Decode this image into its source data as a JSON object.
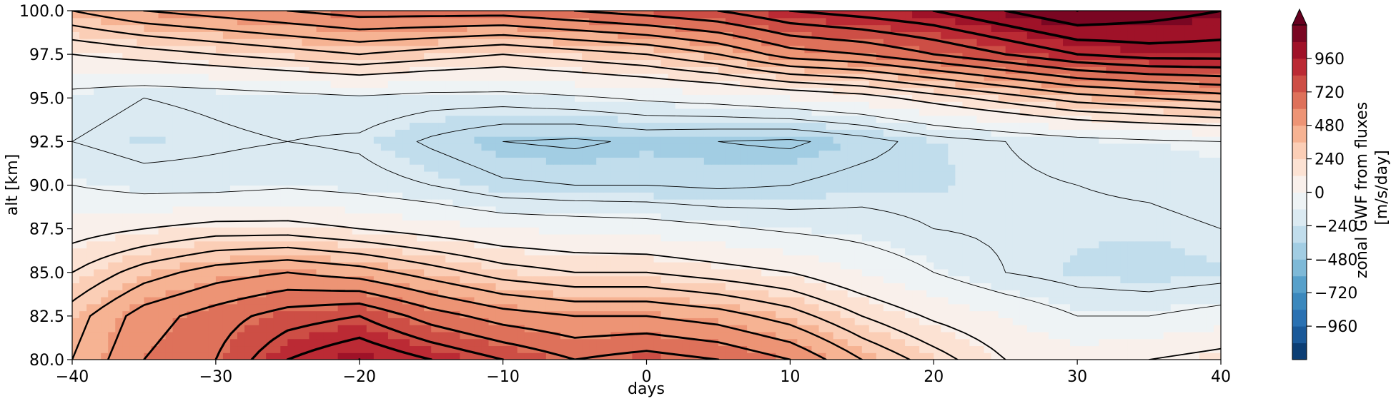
{
  "chart_data": {
    "type": "heatmap",
    "title": "",
    "xlabel": "days",
    "ylabel": "alt [km]",
    "xlim": [
      -40,
      40
    ],
    "ylim": [
      80,
      100
    ],
    "xticks": [
      -40,
      -30,
      -20,
      -10,
      0,
      10,
      20,
      30,
      40
    ],
    "xtick_labels": [
      "−40",
      "−30",
      "−20",
      "−10",
      "0",
      "10",
      "20",
      "30",
      "40"
    ],
    "yticks": [
      80,
      82.5,
      85,
      87.5,
      90,
      92.5,
      95,
      97.5,
      100
    ],
    "ytick_labels": [
      "80.0",
      "82.5",
      "85.0",
      "87.5",
      "90.0",
      "92.5",
      "95.0",
      "97.5",
      "100.0"
    ],
    "grid": false,
    "colormap": "RdBu_r",
    "colorbar": {
      "label_line1": "zonal GWF from fluxes",
      "label_line2": "[m/s/day]",
      "range": [
        -1200,
        1200
      ],
      "ticks": [
        -960,
        -720,
        -480,
        -240,
        0,
        240,
        480,
        720,
        960
      ],
      "tick_labels": [
        "−960",
        "−720",
        "−480",
        "−240",
        "0",
        "240",
        "480",
        "720",
        "960"
      ],
      "extend": "max",
      "colors": [
        "#053061",
        "#2166ac",
        "#4393c3",
        "#92c5de",
        "#d1e5f0",
        "#f7f7f7",
        "#fddbc7",
        "#f4a582",
        "#d6604d",
        "#b2182b",
        "#67001f"
      ]
    },
    "contour_color": "#000000",
    "series": [
      {
        "x": [
          -40,
          -35,
          -30,
          -25,
          -20,
          -15,
          -10,
          -5,
          0,
          5,
          10,
          15,
          20,
          25,
          30,
          35,
          40
        ],
        "altitudes": [
          80,
          82.5,
          85,
          87.5,
          90,
          92.5,
          95,
          97.5,
          100
        ],
        "values": [
          [
            400,
            600,
            700,
            900,
            1000,
            900,
            800,
            700,
            750,
            700,
            600,
            400,
            250,
            100,
            50,
            100,
            150
          ],
          [
            350,
            550,
            650,
            750,
            800,
            650,
            550,
            500,
            500,
            450,
            350,
            200,
            80,
            0,
            -100,
            -100,
            -50
          ],
          [
            200,
            350,
            450,
            500,
            450,
            350,
            250,
            200,
            200,
            150,
            100,
            0,
            -100,
            -200,
            -250,
            -280,
            -250
          ],
          [
            50,
            100,
            150,
            150,
            100,
            50,
            0,
            -20,
            -40,
            -80,
            -120,
            -150,
            -200,
            -220,
            -230,
            -230,
            -200
          ],
          [
            -100,
            -150,
            -150,
            -120,
            -150,
            -200,
            -280,
            -300,
            -300,
            -320,
            -300,
            -250,
            -250,
            -220,
            -200,
            -180,
            -150
          ],
          [
            -200,
            -250,
            -220,
            -200,
            -220,
            -320,
            -400,
            -420,
            -380,
            -400,
            -420,
            -350,
            -250,
            -200,
            -150,
            -120,
            -100
          ],
          [
            -150,
            -200,
            -180,
            -150,
            -120,
            -150,
            -150,
            -120,
            -80,
            -50,
            0,
            50,
            150,
            250,
            350,
            400,
            450
          ],
          [
            100,
            150,
            200,
            250,
            300,
            250,
            200,
            250,
            300,
            400,
            550,
            600,
            700,
            800,
            900,
            950,
            950
          ],
          [
            400,
            500,
            550,
            600,
            650,
            650,
            650,
            700,
            750,
            800,
            900,
            950,
            1000,
            1100,
            1200,
            1150,
            1100
          ]
        ]
      }
    ]
  }
}
